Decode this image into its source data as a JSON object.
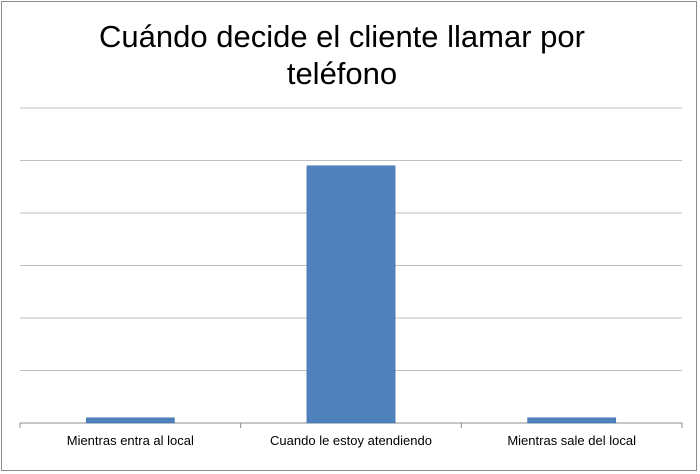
{
  "chart_data": {
    "type": "bar",
    "title": "Cuándo decide el cliente llamar por teléfono",
    "categories": [
      "Mientras entra al local",
      "Cuando le estoy atendiendo",
      "Mientras sale del local"
    ],
    "values": [
      1,
      49,
      1
    ],
    "ylim": [
      0,
      60
    ],
    "ytick_step": 10,
    "y_tick_labels_visible": false,
    "xlabel": "",
    "ylabel": "",
    "grid": true,
    "legend": "none",
    "colors": {
      "bar": "#4f81bd",
      "bar_edge": "#3f6ea8",
      "grid": "#bfbfbf",
      "axis": "#8c8c8c"
    }
  }
}
